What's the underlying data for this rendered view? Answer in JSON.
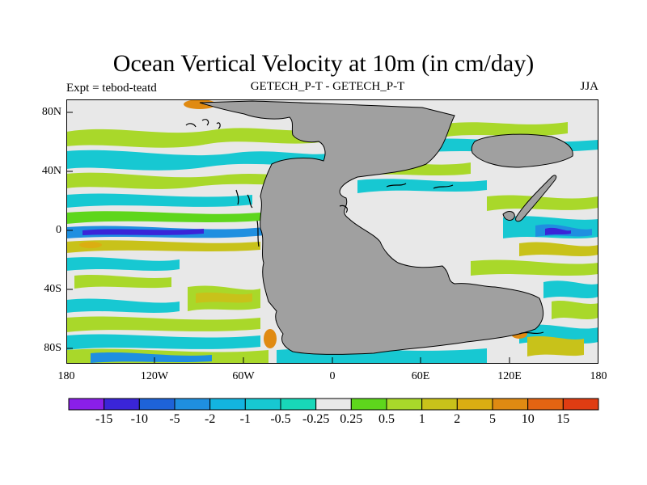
{
  "title": "Ocean Vertical Velocity at 10m (in cm/day)",
  "subtitle_left": "Expt = tebod-teatd",
  "subtitle_center": "GETECH_P-T - GETECH_P-T",
  "subtitle_right": "JJA",
  "lat_ticks": [
    "80N",
    "40N",
    "0",
    "40S",
    "80S"
  ],
  "lon_ticks": [
    "180",
    "120W",
    "60W",
    "0",
    "60E",
    "120E",
    "180"
  ],
  "colorbar": {
    "labels": [
      "-15",
      "-10",
      "-5",
      "-2",
      "-1",
      "-0.5",
      "-0.25",
      "0.25",
      "0.5",
      "1",
      "2",
      "5",
      "10",
      "15"
    ],
    "colors": [
      "#8a1fe8",
      "#3a25d8",
      "#1e63d8",
      "#1f8fe0",
      "#13b4e0",
      "#17c8d2",
      "#18d7b8",
      "#e8e8e8",
      "#5ed61c",
      "#a9d82a",
      "#c8c21a",
      "#dbae12",
      "#e08a12",
      "#e36412",
      "#e03c12"
    ]
  },
  "field_colors": {
    "ocean_bg": "#e8e8e8",
    "land": "#a0a0a0",
    "cyan": "#17c8d2",
    "blue": "#1f8fe0",
    "deep_blue": "#3a25d8",
    "green": "#5ed61c",
    "yellow_green": "#a9d82a",
    "olive": "#c8c21a",
    "orange": "#e08a12"
  }
}
